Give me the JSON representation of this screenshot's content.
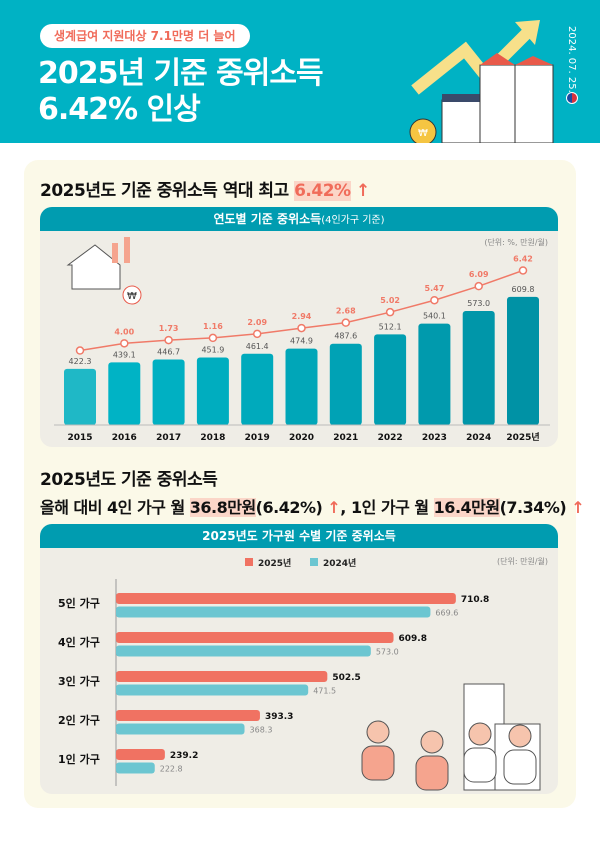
{
  "header": {
    "badge": "생계급여 지원대상 7.1만명 더 늘어",
    "title_line1": "2025년 기준 중위소득",
    "title_line2": "6.42% 인상",
    "date": "2024. 07. 25.",
    "ministry_logo": "보건복지부"
  },
  "section1": {
    "heading_prefix": "2025년도 기준 중위소득 역대 최고 ",
    "heading_value": "6.42%",
    "up_icon": "↑"
  },
  "section2": {
    "heading_line1": "2025년도 기준 중위소득",
    "line2_a": "올해 대비 4인 가구 월 ",
    "line2_b": "36.8만원",
    "line2_c": "(6.42%)",
    "line2_d": ", 1인 가구 월 ",
    "line2_e": "16.4만원",
    "line2_f": "(7.34%)",
    "up_icon": "↑"
  },
  "colors": {
    "header": "#00b2c4",
    "card_header": "#009cb0",
    "accent": "#f06b5a",
    "bar_2024": "#6cc6d1"
  },
  "chart_data": [
    {
      "type": "bar",
      "title": "연도별 기준 중위소득",
      "title_note": "(4인가구 기준)",
      "unit": "(단위: %, 만원/월)",
      "categories": [
        "2015",
        "2016",
        "2017",
        "2018",
        "2019",
        "2020",
        "2021",
        "2022",
        "2023",
        "2024",
        "2025년"
      ],
      "values": [
        422.3,
        439.1,
        446.7,
        451.9,
        461.4,
        474.9,
        487.6,
        512.1,
        540.1,
        573.0,
        609.8
      ],
      "value_labels": [
        "422.3",
        "439.1",
        "446.7",
        "451.9",
        "461.4",
        "474.9",
        "487.6",
        "512.1",
        "540.1",
        "573.0",
        "609.8"
      ],
      "rate_line": {
        "type": "line",
        "values": [
          null,
          4.0,
          1.73,
          1.16,
          2.09,
          2.94,
          2.68,
          5.02,
          5.47,
          6.09,
          6.42
        ],
        "labels": [
          "",
          "4.00",
          "1.73",
          "1.16",
          "2.09",
          "2.94",
          "2.68",
          "5.02",
          "5.47",
          "6.09",
          "6.42"
        ]
      },
      "grid": false
    },
    {
      "type": "bar",
      "orientation": "horizontal",
      "title": "2025년도 가구원 수별 기준 중위소득",
      "unit": "(단위: 만원/월)",
      "categories": [
        "5인 가구",
        "4인 가구",
        "3인 가구",
        "2인 가구",
        "1인 가구"
      ],
      "series": [
        {
          "name": "2025년",
          "values": [
            710.8,
            609.8,
            502.5,
            393.3,
            239.2
          ],
          "labels": [
            "710.8",
            "609.8",
            "502.5",
            "393.3",
            "239.2"
          ]
        },
        {
          "name": "2024년",
          "values": [
            669.6,
            573.0,
            471.5,
            368.3,
            222.8
          ],
          "labels": [
            "669.6",
            "573.0",
            "471.5",
            "368.3",
            "222.8"
          ]
        }
      ],
      "legend": "top-center",
      "grid": false
    }
  ]
}
